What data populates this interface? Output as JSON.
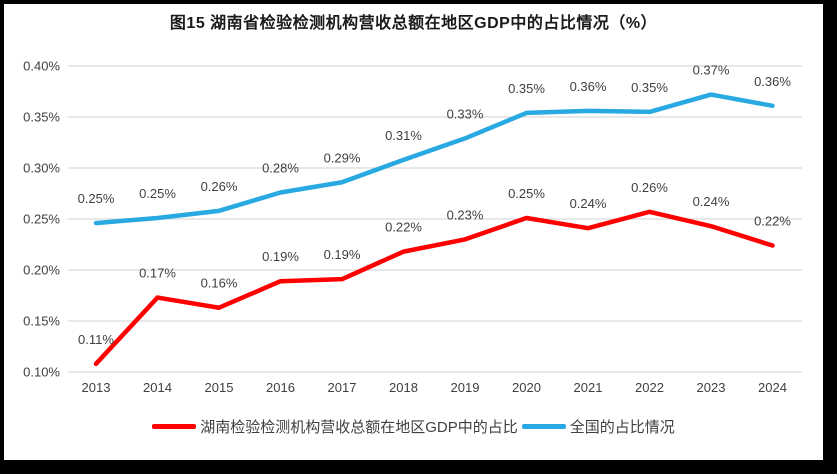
{
  "window": {
    "background_color": "#ffffff",
    "frame_color": "#000000"
  },
  "title": "图15 湖南省检验检测机构营收总额在地区GDP中的占比情况（%）",
  "chart_data": {
    "type": "line",
    "categories": [
      "2013",
      "2014",
      "2015",
      "2016",
      "2017",
      "2018",
      "2019",
      "2020",
      "2021",
      "2022",
      "2023",
      "2024"
    ],
    "series": [
      {
        "name": "湖南检验检测机构营收总额在地区GDP中的占比",
        "color": "#FF0000",
        "values": [
          0.11,
          0.17,
          0.16,
          0.19,
          0.19,
          0.22,
          0.23,
          0.25,
          0.24,
          0.26,
          0.24,
          0.22
        ],
        "data_labels": [
          "0.11%",
          "0.17%",
          "0.16%",
          "0.19%",
          "0.19%",
          "0.22%",
          "0.23%",
          "0.25%",
          "0.24%",
          "0.26%",
          "0.24%",
          "0.22%"
        ],
        "plot_values": [
          0.108,
          0.173,
          0.163,
          0.189,
          0.191,
          0.218,
          0.23,
          0.251,
          0.241,
          0.257,
          0.243,
          0.224
        ]
      },
      {
        "name": "全国的占比情况",
        "color": "#29A9E2",
        "values": [
          0.25,
          0.25,
          0.26,
          0.28,
          0.29,
          0.31,
          0.33,
          0.35,
          0.36,
          0.35,
          0.37,
          0.36
        ],
        "data_labels": [
          "0.25%",
          "0.25%",
          "0.26%",
          "0.28%",
          "0.29%",
          "0.31%",
          "0.33%",
          "0.35%",
          "0.36%",
          "0.35%",
          "0.37%",
          "0.36%"
        ],
        "plot_values": [
          0.246,
          0.251,
          0.258,
          0.276,
          0.286,
          0.308,
          0.329,
          0.354,
          0.356,
          0.355,
          0.372,
          0.361
        ]
      }
    ],
    "xlabel": "",
    "ylabel": "",
    "y_tick_labels": [
      "0.40%",
      "0.35%",
      "0.30%",
      "0.25%",
      "0.20%",
      "0.15%",
      "0.10%"
    ],
    "y_tick_values": [
      0.4,
      0.35,
      0.3,
      0.25,
      0.2,
      0.15,
      0.1
    ],
    "ylim": [
      0.1,
      0.4
    ],
    "grid": true,
    "gridline_color": "#D9D9D9",
    "tick_label_color": "#404040",
    "data_label_color": "#404040",
    "legend_position": "bottom"
  }
}
